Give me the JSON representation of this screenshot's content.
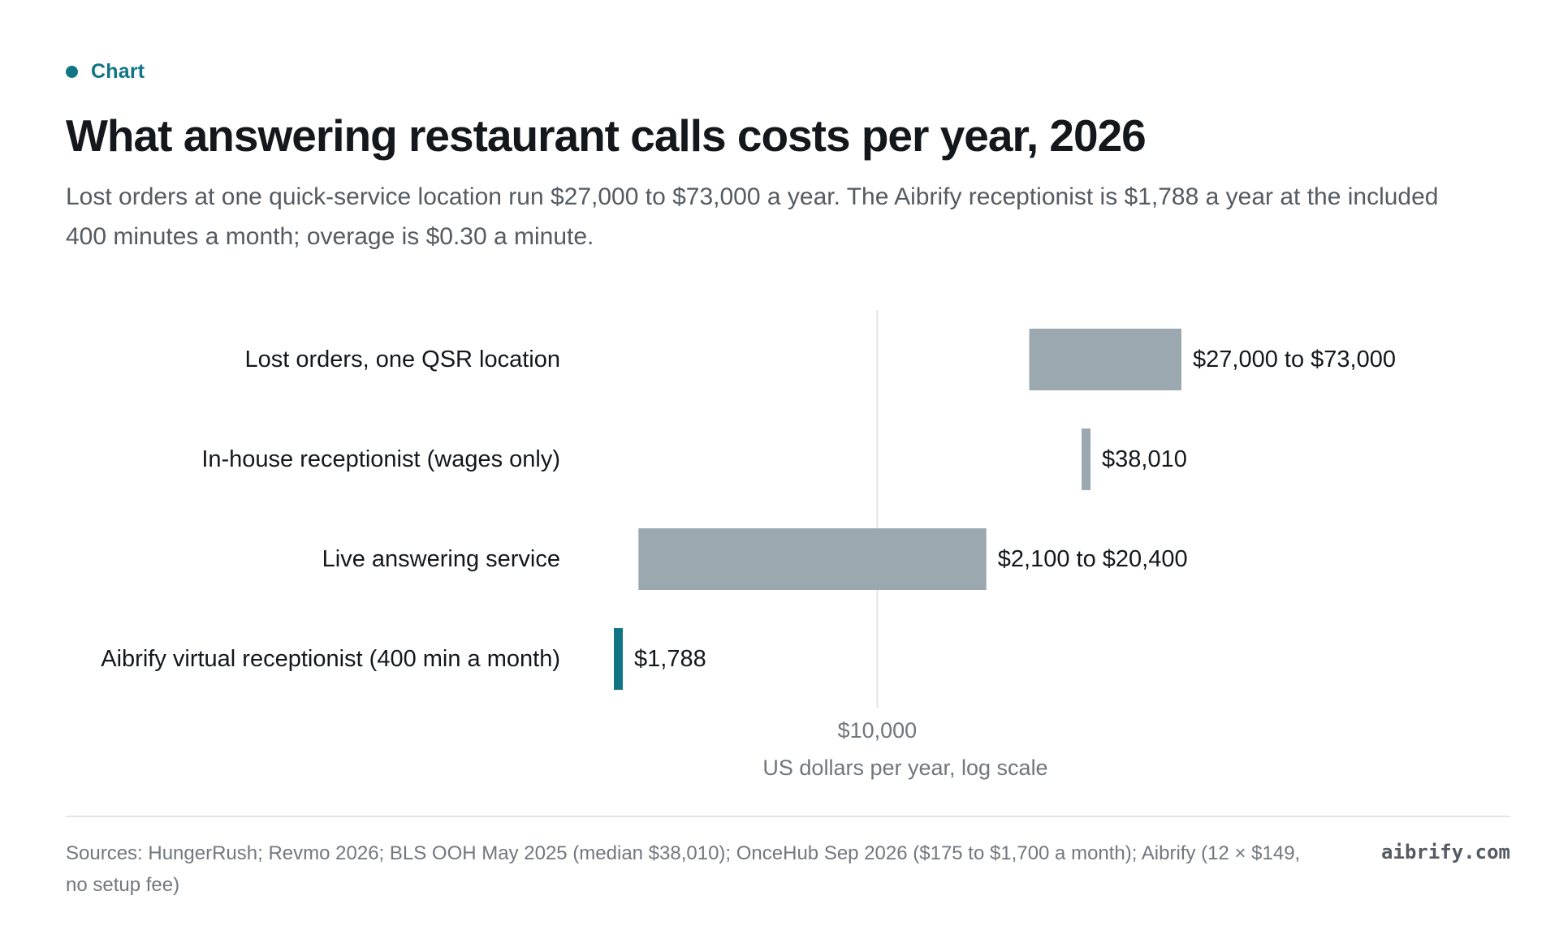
{
  "eyebrow": {
    "label": "Chart"
  },
  "header": {
    "title": "What answering restaurant calls costs per year, 2026",
    "subtitle": "Lost orders at one quick-service location run $27,000 to $73,000 a year. The Aibrify receptionist is $1,788 a year at the included 400 minutes a month; overage is $0.30 a minute."
  },
  "chart_data": {
    "type": "bar",
    "orientation": "horizontal",
    "scale": "log",
    "xlabel": "US dollars per year, log scale",
    "xticks": [
      {
        "value": 10000,
        "label": "$10,000"
      }
    ],
    "grid": true,
    "categories": [
      "Lost orders, one QSR location",
      "In-house receptionist (wages only)",
      "Live answering service",
      "Aibrify virtual receptionist (400 min a month)"
    ],
    "bars": [
      {
        "category": "Lost orders, one QSR location",
        "low": 27000,
        "high": 73000,
        "label": "$27,000 to $73,000",
        "color": "#9ba8b0"
      },
      {
        "category": "In-house receptionist (wages only)",
        "low": 38010,
        "high": 38010,
        "label": "$38,010",
        "color": "#9ba8b0"
      },
      {
        "category": "Live answering service",
        "low": 2100,
        "high": 20400,
        "label": "$2,100 to $20,400",
        "color": "#9ba8b0"
      },
      {
        "category": "Aibrify virtual receptionist (400 min a month)",
        "low": 1788,
        "high": 1788,
        "label": "$1,788",
        "color": "#127584"
      }
    ]
  },
  "footer": {
    "sources": "Sources: HungerRush; Revmo 2026; BLS OOH May 2025 (median $38,010); OnceHub Sep 2026 ($175 to $1,700 a month); Aibrify (12 × $149, no setup fee)",
    "domain": "aibrify.com"
  }
}
